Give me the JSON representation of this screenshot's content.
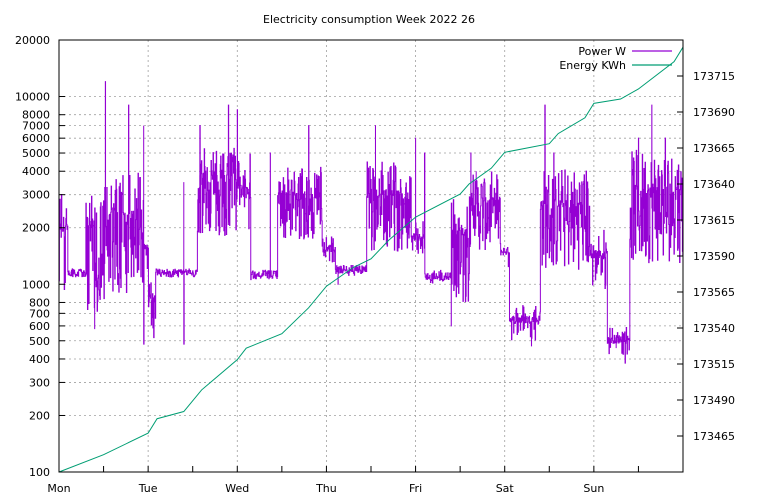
{
  "chart_data": {
    "type": "line",
    "title": "Electricity consumption Week 2022 26",
    "xlabel": "",
    "ylabel": "",
    "x_categories": [
      "Mon",
      "Tue",
      "Wed",
      "Thu",
      "Fri",
      "Sat",
      "Sun"
    ],
    "y_left": {
      "scale": "log",
      "range": [
        100,
        20000
      ],
      "ticks": [
        100,
        200,
        300,
        400,
        500,
        600,
        700,
        800,
        1000,
        2000,
        3000,
        4000,
        5000,
        6000,
        7000,
        8000,
        10000,
        20000
      ],
      "tick_labels": [
        "100",
        "200",
        "300",
        "400",
        "500",
        "600",
        "700",
        "800",
        "1000",
        "2000",
        "3000",
        "4000",
        "5000",
        "6000",
        "7000",
        "8000",
        "10000",
        "20000"
      ]
    },
    "y_right": {
      "scale": "linear",
      "range": [
        173440,
        173740
      ],
      "ticks": [
        173465,
        173490,
        173515,
        173540,
        173565,
        173590,
        173615,
        173640,
        173665,
        173690,
        173715
      ],
      "tick_labels": [
        "173465",
        "173490",
        "173515",
        "173540",
        "173565",
        "173590",
        "173615",
        "173640",
        "173665",
        "173690",
        "173715"
      ]
    },
    "grid": true,
    "legend": {
      "position": "top-right",
      "entries": [
        "Power W",
        "Energy KWh"
      ]
    },
    "series": [
      {
        "name": "Power W",
        "axis": "left",
        "color": "#9400d3",
        "style": "steps",
        "seed": 26,
        "segments": [
          [
            0.0,
            0.1,
            800,
            3200,
            0.55
          ],
          [
            0.1,
            0.3,
            1100,
            1200,
            0.0
          ],
          [
            0.3,
            0.55,
            700,
            3500,
            0.85
          ],
          [
            0.55,
            0.95,
            900,
            4000,
            0.85
          ],
          [
            0.95,
            1.0,
            1200,
            2000,
            0.5
          ],
          [
            1.0,
            1.08,
            500,
            1200,
            0.6
          ],
          [
            1.08,
            1.4,
            1100,
            1200,
            0.05
          ],
          [
            1.4,
            1.55,
            1100,
            1200,
            0.1
          ],
          [
            1.55,
            2.0,
            1800,
            5500,
            0.85
          ],
          [
            2.0,
            2.15,
            1600,
            5000,
            0.75
          ],
          [
            2.15,
            2.45,
            1050,
            1200,
            0.1
          ],
          [
            2.45,
            2.95,
            1700,
            4200,
            0.85
          ],
          [
            2.95,
            3.1,
            1300,
            1800,
            0.4
          ],
          [
            3.1,
            3.45,
            1100,
            1300,
            0.1
          ],
          [
            3.45,
            3.95,
            1500,
            4500,
            0.85
          ],
          [
            3.95,
            4.1,
            1400,
            2200,
            0.5
          ],
          [
            4.1,
            4.4,
            1000,
            1200,
            0.2
          ],
          [
            4.4,
            4.6,
            800,
            3000,
            0.75
          ],
          [
            4.6,
            4.95,
            1500,
            4000,
            0.85
          ],
          [
            4.95,
            5.05,
            1200,
            1800,
            0.3
          ],
          [
            5.05,
            5.4,
            500,
            800,
            0.4
          ],
          [
            5.4,
            5.95,
            1200,
            4200,
            0.85
          ],
          [
            5.95,
            6.15,
            900,
            2000,
            0.5
          ],
          [
            6.15,
            6.4,
            420,
            600,
            0.4
          ],
          [
            6.4,
            7.0,
            1300,
            5200,
            0.85
          ]
        ],
        "peaks": [
          [
            0.52,
            12000
          ],
          [
            0.78,
            9000
          ],
          [
            0.95,
            7000
          ],
          [
            1.4,
            3500
          ],
          [
            1.58,
            7000
          ],
          [
            1.9,
            9000
          ],
          [
            2.0,
            8500
          ],
          [
            2.37,
            5000
          ],
          [
            2.8,
            7000
          ],
          [
            3.13,
            1000
          ],
          [
            3.55,
            7000
          ],
          [
            4.0,
            6000
          ],
          [
            4.1,
            5000
          ],
          [
            4.62,
            5000
          ],
          [
            4.68,
            4000
          ],
          [
            5.45,
            9000
          ],
          [
            5.55,
            5000
          ],
          [
            5.7,
            3000
          ],
          [
            6.5,
            6000
          ],
          [
            6.65,
            9000
          ],
          [
            6.8,
            6000
          ],
          [
            6.98,
            3000
          ]
        ],
        "dips": [
          [
            0.4,
            580
          ],
          [
            0.95,
            480
          ],
          [
            1.4,
            480
          ],
          [
            5.1,
            550
          ],
          [
            5.3,
            470
          ],
          [
            6.25,
            460
          ],
          [
            6.35,
            380
          ],
          [
            4.4,
            600
          ]
        ]
      },
      {
        "name": "Energy KWh",
        "axis": "right",
        "color": "#009e73",
        "style": "line",
        "x": [
          0.0,
          0.5,
          1.0,
          1.1,
          1.4,
          1.6,
          2.0,
          2.1,
          2.5,
          2.8,
          3.0,
          3.3,
          3.5,
          3.7,
          4.0,
          4.5,
          4.6,
          4.85,
          5.0,
          5.5,
          5.6,
          5.9,
          6.0,
          6.3,
          6.5,
          6.9,
          7.0
        ],
        "y": [
          173440,
          173452,
          173467,
          173477,
          173482,
          173497,
          173518,
          173526,
          173536,
          173554,
          173569,
          173582,
          173588,
          173601,
          173617,
          173633,
          173640,
          173651,
          173662,
          173668,
          173675,
          173686,
          173696,
          173699,
          173706,
          173725,
          173735
        ]
      }
    ]
  }
}
